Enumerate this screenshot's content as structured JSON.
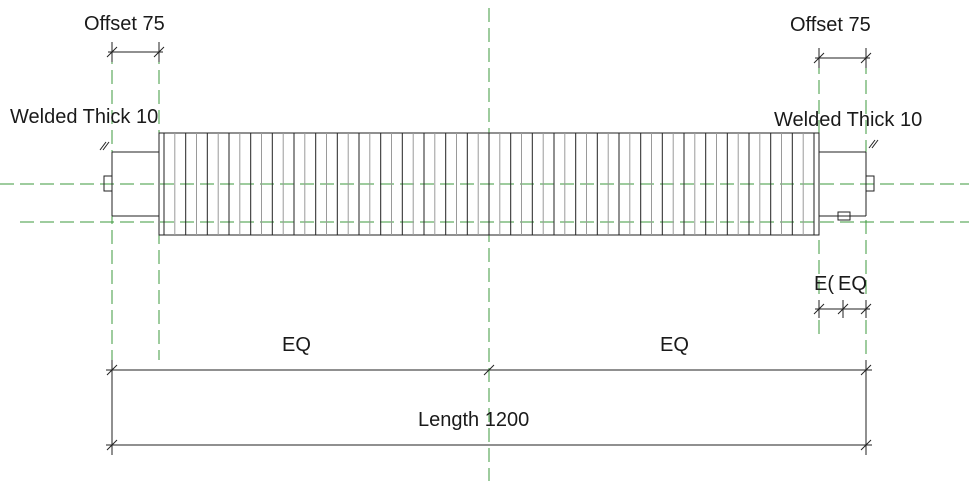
{
  "labels": {
    "offset_left": "Offset 75",
    "offset_right": "Offset 75",
    "weld_left": "Welded Thick 10",
    "weld_right": "Welded Thick 10",
    "eq_left": "EQ",
    "eq_right": "EQ",
    "eq_small_a": "E(",
    "eq_small_b": "EQ",
    "length": "Length 1200"
  },
  "colors": {
    "reference_line": "#3c9a3c",
    "ink": "#222222",
    "hatch_light": "#9a9a9a"
  },
  "hatch": {
    "pattern": "alternating-dark-light",
    "line_count": 61
  }
}
